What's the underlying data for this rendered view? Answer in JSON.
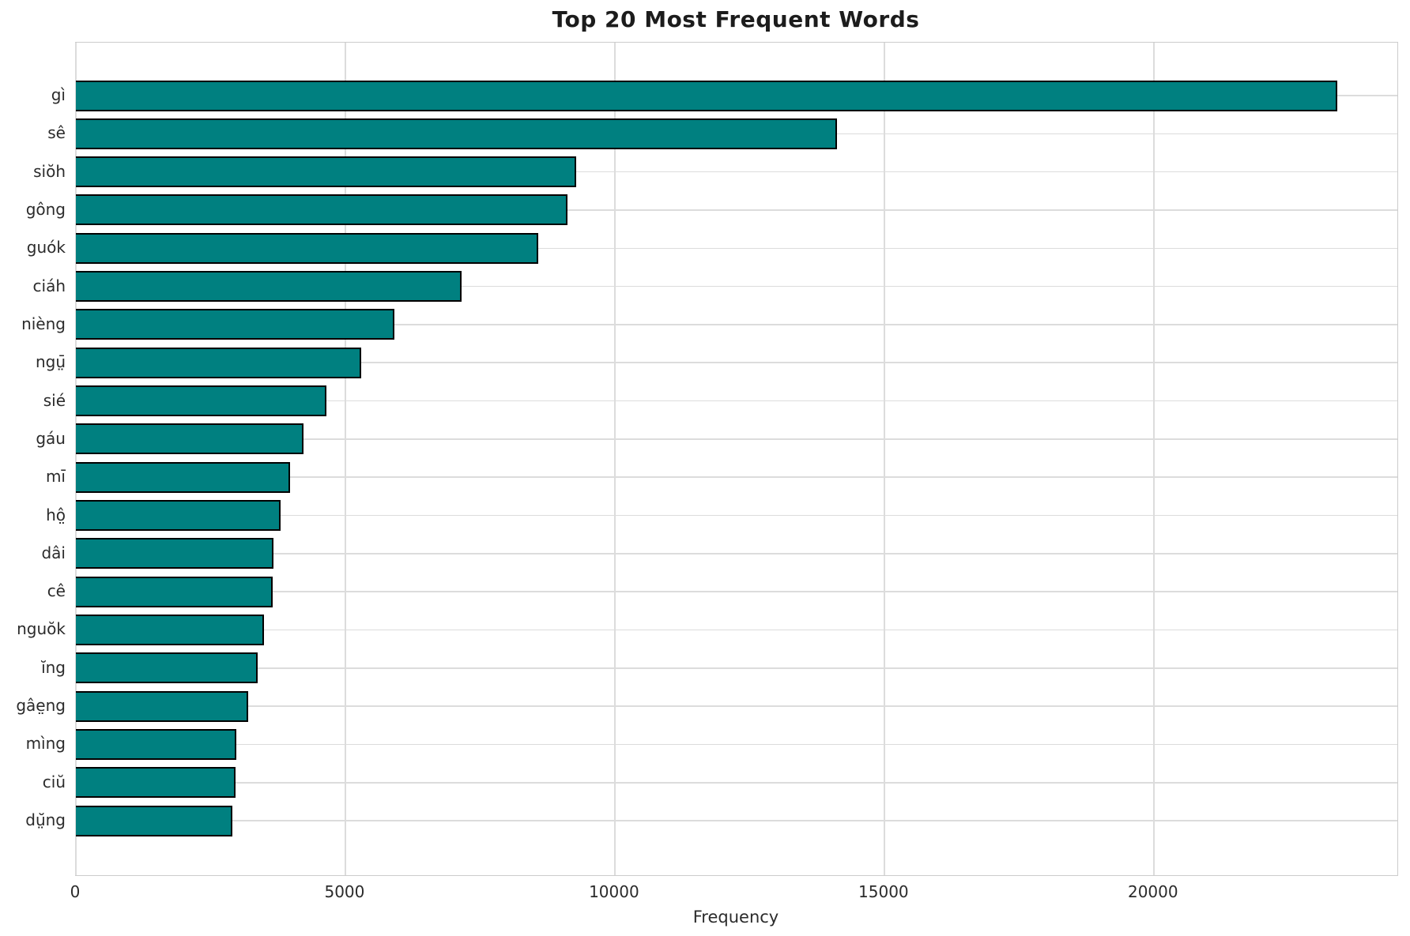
{
  "figure": {
    "title": "Top 20 Most Frequent Words",
    "xlabel": "Frequency"
  },
  "colors": {
    "bar_fill": "#008080",
    "bar_edge": "#000000",
    "grid": "#dcdcdc",
    "spine": "#cccccc",
    "title_text": "#1c1c1c",
    "tick_text": "#2b2b2b"
  },
  "chart_data": {
    "type": "bar",
    "orientation": "horizontal",
    "title": "Top 20 Most Frequent Words",
    "xlabel": "Frequency",
    "ylabel": "",
    "categories": [
      "gì",
      "sê",
      "siŏh",
      "gông",
      "guók",
      "ciáh",
      "nièng",
      "ngṳ̄",
      "sié",
      "gáu",
      "mī",
      "hô̤",
      "dâi",
      "cê",
      "nguŏk",
      "ĭng",
      "gâe̤ng",
      "mìng",
      "ciŭ",
      "dṳ̆ng"
    ],
    "values": [
      23400,
      14120,
      9280,
      9120,
      8580,
      7160,
      5910,
      5290,
      4650,
      4220,
      3970,
      3800,
      3670,
      3650,
      3490,
      3370,
      3200,
      2980,
      2960,
      2900
    ],
    "xlim": [
      0,
      24520
    ],
    "xticks": [
      0,
      5000,
      10000,
      15000,
      20000
    ],
    "xtick_labels": [
      "0",
      "5000",
      "10000",
      "15000",
      "20000"
    ],
    "grid": "both",
    "legend": "none"
  }
}
